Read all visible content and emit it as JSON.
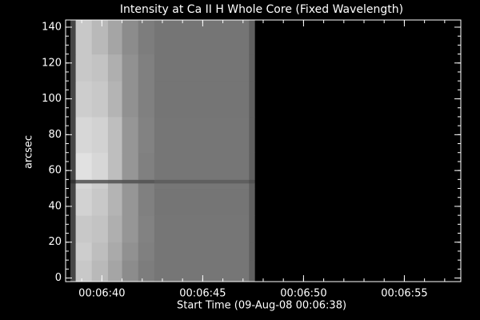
{
  "chart_data": {
    "type": "heatmap",
    "title": "Intensity at Ca II H Whole Core (Fixed Wavelength)",
    "xlabel": "Start Time (09-Aug-08 00:06:38)",
    "ylabel": "arcsec",
    "xlim": [
      0.2,
      19.8
    ],
    "xticks": [
      {
        "value": 2,
        "label": "00:06:40"
      },
      {
        "value": 7,
        "label": "00:06:45"
      },
      {
        "value": 12,
        "label": "00:06:50"
      },
      {
        "value": 17,
        "label": "00:06:55"
      }
    ],
    "ylim": [
      -2,
      144
    ],
    "yticks": [
      0,
      20,
      40,
      60,
      80,
      100,
      120,
      140
    ],
    "colormap": "gray",
    "zlim": [
      0,
      255
    ],
    "x_edges": [
      0.44,
      0.7,
      1.5,
      2.3,
      3.0,
      3.8,
      4.6,
      9.3,
      9.57
    ],
    "y_edges": [
      -2,
      10,
      20,
      35,
      50,
      53,
      55,
      70,
      90,
      110,
      125,
      144
    ],
    "z": [
      [
        70,
        200,
        185,
        165,
        140,
        125,
        118,
        95
      ],
      [
        70,
        205,
        190,
        170,
        145,
        128,
        118,
        95
      ],
      [
        70,
        200,
        195,
        175,
        150,
        130,
        118,
        95
      ],
      [
        70,
        210,
        200,
        180,
        150,
        128,
        117,
        95
      ],
      [
        70,
        215,
        205,
        180,
        150,
        128,
        118,
        95
      ],
      [
        50,
        100,
        100,
        95,
        90,
        88,
        95,
        80
      ],
      [
        70,
        225,
        215,
        190,
        150,
        128,
        118,
        95
      ],
      [
        70,
        215,
        210,
        190,
        150,
        130,
        118,
        95
      ],
      [
        70,
        205,
        200,
        180,
        145,
        128,
        117,
        95
      ],
      [
        70,
        200,
        195,
        175,
        145,
        128,
        117,
        95
      ],
      [
        70,
        200,
        185,
        165,
        140,
        125,
        117,
        95
      ]
    ]
  }
}
